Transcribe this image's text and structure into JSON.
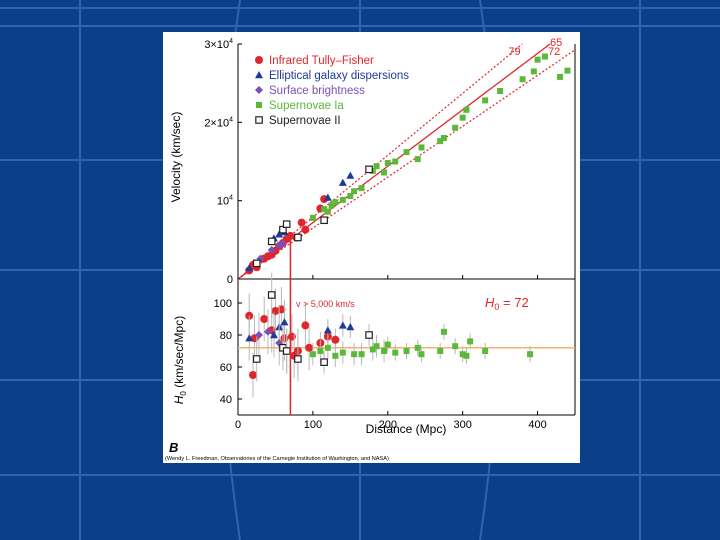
{
  "figure": {
    "panel_letter": "B",
    "credit": "(Wendy L. Freedman, Observatories of the Carnegie Institution of Washington, and NASA)"
  },
  "colors": {
    "background": "#0b3f88",
    "grid_line": "#3a6fc0",
    "fit_line": "#e0262b",
    "infrared": "#e0262b",
    "elliptical": "#1f3a9a",
    "surface": "#7b4fb3",
    "sn_ia": "#5cb83a",
    "sn_ii": "#222222",
    "error_bar": "#b8b8b8"
  },
  "chart_data": [
    {
      "type": "scatter",
      "title": "",
      "xlabel": "",
      "ylabel": "Velocity (km/sec)",
      "xlim": [
        0,
        450
      ],
      "ylim": [
        0,
        30000
      ],
      "x_ticks": [
        0,
        100,
        200,
        300,
        400
      ],
      "y_ticks": [
        {
          "value": 0,
          "label": "0"
        },
        {
          "value": 10000,
          "label": "10",
          "exp": "4"
        },
        {
          "value": 20000,
          "label": "2×10",
          "exp": "4"
        },
        {
          "value": 30000,
          "label": "3×10",
          "exp": "4"
        }
      ],
      "legend": [
        {
          "label": "Infrared Tully–Fisher",
          "color": "#e0262b",
          "marker": "circle"
        },
        {
          "label": "Elliptical galaxy dispersions",
          "color": "#1f3a9a",
          "marker": "triangle"
        },
        {
          "label": "Surface brightness",
          "color": "#7b4fb3",
          "marker": "diamond"
        },
        {
          "label": "Supernovae Ia",
          "color": "#5cb83a",
          "marker": "square"
        },
        {
          "label": "Supernovae II",
          "color": "#222222",
          "marker": "open-square"
        }
      ],
      "legend_position": "top-left",
      "fit_lines": [
        {
          "label": "79",
          "slope": 79,
          "style": "dotted"
        },
        {
          "label": "72",
          "slope": 72,
          "style": "solid"
        },
        {
          "label": "65",
          "slope": 65,
          "style": "dotted"
        }
      ],
      "cutoff_distance": 70,
      "series": [
        {
          "name": "Infrared Tully–Fisher",
          "points": [
            [
              15,
              1100
            ],
            [
              20,
              1800
            ],
            [
              25,
              1500
            ],
            [
              35,
              2600
            ],
            [
              40,
              2900
            ],
            [
              45,
              3100
            ],
            [
              50,
              3600
            ],
            [
              55,
              4200
            ],
            [
              60,
              4600
            ],
            [
              65,
              5100
            ],
            [
              70,
              5500
            ],
            [
              78,
              5300
            ],
            [
              85,
              7200
            ],
            [
              90,
              6300
            ],
            [
              110,
              9000
            ],
            [
              115,
              10200
            ]
          ]
        },
        {
          "name": "Elliptical galaxy dispersions",
          "points": [
            [
              15,
              1400
            ],
            [
              48,
              5200
            ],
            [
              55,
              5700
            ],
            [
              62,
              6000
            ],
            [
              120,
              10400
            ],
            [
              140,
              12300
            ],
            [
              150,
              13200
            ]
          ]
        },
        {
          "name": "Surface brightness",
          "points": [
            [
              30,
              2600
            ],
            [
              45,
              3700
            ],
            [
              55,
              4300
            ],
            [
              60,
              4500
            ]
          ]
        },
        {
          "name": "Supernovae Ia",
          "points": [
            [
              100,
              7800
            ],
            [
              115,
              8900
            ],
            [
              120,
              8600
            ],
            [
              125,
              9400
            ],
            [
              130,
              9800
            ],
            [
              140,
              10100
            ],
            [
              150,
              10600
            ],
            [
              155,
              11200
            ],
            [
              165,
              11600
            ],
            [
              180,
              13800
            ],
            [
              185,
              14400
            ],
            [
              195,
              13600
            ],
            [
              200,
              14800
            ],
            [
              210,
              15000
            ],
            [
              225,
              16200
            ],
            [
              240,
              15300
            ],
            [
              245,
              16800
            ],
            [
              270,
              17600
            ],
            [
              275,
              18000
            ],
            [
              290,
              19300
            ],
            [
              300,
              20600
            ],
            [
              305,
              21600
            ],
            [
              330,
              22800
            ],
            [
              350,
              24000
            ],
            [
              380,
              25500
            ],
            [
              395,
              26500
            ],
            [
              400,
              28000
            ],
            [
              410,
              28400
            ],
            [
              430,
              25800
            ],
            [
              440,
              26600
            ]
          ]
        },
        {
          "name": "Supernovae II",
          "points": [
            [
              25,
              2000
            ],
            [
              45,
              4800
            ],
            [
              60,
              6300
            ],
            [
              65,
              7000
            ],
            [
              80,
              5300
            ],
            [
              115,
              7500
            ],
            [
              175,
              14000
            ]
          ]
        }
      ]
    },
    {
      "type": "scatter",
      "title": "",
      "xlabel": "Distance (Mpc)",
      "ylabel": "H0 (km/sec/Mpc)",
      "ylabel_parts": {
        "main": "H",
        "sub": "0",
        "rest": " (km/sec/Mpc)"
      },
      "xlim": [
        0,
        450
      ],
      "ylim": [
        30,
        115
      ],
      "x_ticks": [
        0,
        100,
        200,
        300,
        400
      ],
      "y_ticks": [
        40,
        60,
        80,
        100
      ],
      "reference_value": 72,
      "annotation_h0": {
        "main": "H",
        "sub": "0",
        "rest": " = 72"
      },
      "annotation_velocity": "v > 5,000 km/s",
      "cutoff_distance": 70,
      "series": [
        {
          "name": "Infrared Tully–Fisher",
          "points": [
            [
              15,
              92
            ],
            [
              20,
              55
            ],
            [
              22,
              78
            ],
            [
              35,
              90
            ],
            [
              45,
              83
            ],
            [
              50,
              95
            ],
            [
              58,
              96
            ],
            [
              62,
              78
            ],
            [
              72,
              79
            ],
            [
              75,
              67
            ],
            [
              80,
              70
            ],
            [
              90,
              86
            ],
            [
              95,
              72
            ],
            [
              110,
              75
            ],
            [
              120,
              79
            ],
            [
              130,
              77
            ]
          ]
        },
        {
          "name": "Elliptical galaxy dispersions",
          "points": [
            [
              15,
              78
            ],
            [
              48,
              80
            ],
            [
              55,
              85
            ],
            [
              62,
              88
            ],
            [
              120,
              83
            ],
            [
              140,
              86
            ],
            [
              150,
              85
            ]
          ]
        },
        {
          "name": "Surface brightness",
          "points": [
            [
              28,
              80
            ],
            [
              40,
              82
            ],
            [
              55,
              75
            ],
            [
              65,
              70
            ]
          ]
        },
        {
          "name": "Supernovae Ia",
          "points": [
            [
              100,
              68
            ],
            [
              110,
              70
            ],
            [
              120,
              72
            ],
            [
              130,
              67
            ],
            [
              140,
              69
            ],
            [
              155,
              68
            ],
            [
              165,
              68
            ],
            [
              180,
              71
            ],
            [
              185,
              73
            ],
            [
              195,
              70
            ],
            [
              200,
              74
            ],
            [
              210,
              69
            ],
            [
              225,
              70
            ],
            [
              240,
              72
            ],
            [
              245,
              68
            ],
            [
              270,
              70
            ],
            [
              275,
              82
            ],
            [
              290,
              73
            ],
            [
              300,
              68
            ],
            [
              305,
              67
            ],
            [
              310,
              76
            ],
            [
              330,
              70
            ],
            [
              390,
              68
            ]
          ]
        },
        {
          "name": "Supernovae II",
          "points": [
            [
              25,
              65
            ],
            [
              45,
              105
            ],
            [
              60,
              72
            ],
            [
              65,
              70
            ],
            [
              80,
              65
            ],
            [
              115,
              63
            ],
            [
              175,
              80
            ]
          ]
        }
      ]
    }
  ]
}
